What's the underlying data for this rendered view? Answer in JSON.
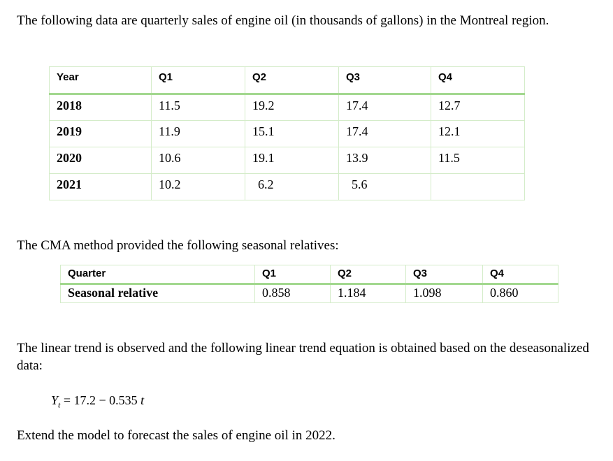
{
  "intro_text": "The following data are quarterly sales of engine oil (in thousands of gallons) in the Montreal region.",
  "sales_table": {
    "headers": [
      "Year",
      "Q1",
      "Q2",
      "Q3",
      "Q4"
    ],
    "rows": [
      {
        "year": "2018",
        "q1": "11.5",
        "q2": "19.2",
        "q3": "17.4",
        "q4": "12.7"
      },
      {
        "year": "2019",
        "q1": "11.9",
        "q2": "15.1",
        "q3": "17.4",
        "q4": "12.1"
      },
      {
        "year": "2020",
        "q1": "10.6",
        "q2": "19.1",
        "q3": "13.9",
        "q4": "11.5"
      },
      {
        "year": "2021",
        "q1": "10.2",
        "q2": "6.2",
        "q3": "5.6",
        "q4": ""
      }
    ]
  },
  "cma_text": "The CMA method provided the following seasonal relatives:",
  "seasonal_table": {
    "headers": [
      "Quarter",
      "Q1",
      "Q2",
      "Q3",
      "Q4"
    ],
    "row_label": "Seasonal relative",
    "values": [
      "0.858",
      "1.184",
      "1.098",
      "0.860"
    ]
  },
  "trend_text": "The linear trend is observed and the following linear trend equation is obtained based on the deseasonalized data:",
  "equation": {
    "lhs_var": "Y",
    "lhs_sub": "t",
    "rhs": " = 17.2 − 0.535 ",
    "rhs_var": "t"
  },
  "extend_text": "Extend the model to forecast the sales of engine oil in 2022.",
  "colors": {
    "table_border": "#d4ecc9",
    "header_rule": "#a3d88f"
  }
}
